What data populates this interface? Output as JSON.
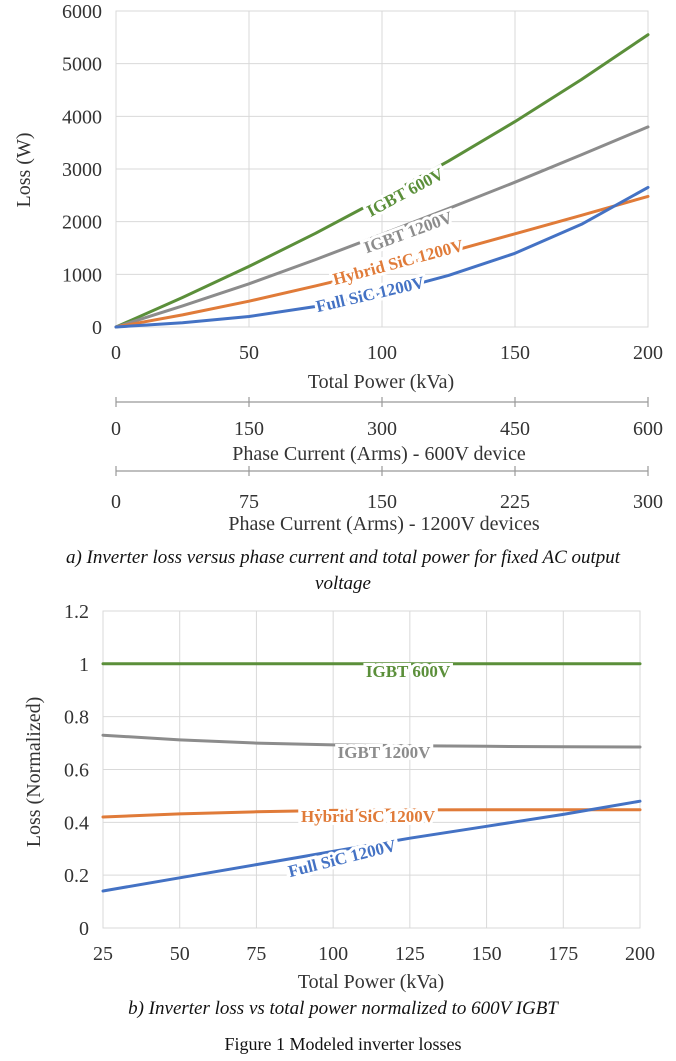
{
  "charts": [
    {
      "type": "line",
      "x_label": "Total Power (kVa)",
      "y_label": "Loss (W)",
      "x_ticks": [
        "0",
        "50",
        "100",
        "150",
        "200"
      ],
      "y_ticks": [
        "0",
        "1000",
        "2000",
        "3000",
        "4000",
        "5000",
        "6000"
      ],
      "xlim": [
        0,
        200
      ],
      "ylim": [
        0,
        6000
      ],
      "grid": true,
      "legend": "inline labels",
      "secondary_axes": [
        {
          "label": "Phase Current (Arms) - 600V device",
          "ticks": [
            "0",
            "150",
            "300",
            "450",
            "600"
          ]
        },
        {
          "label": "Phase Current (Arms) - 1200V devices",
          "ticks": [
            "0",
            "75",
            "150",
            "225",
            "300"
          ]
        }
      ],
      "caption_line1": "a) Inverter loss versus phase current and total power for fixed AC output",
      "caption_line2": "voltage",
      "series": [
        {
          "name": "IGBT 600V",
          "color": "#5b8f3a",
          "x": [
            0,
            25,
            50,
            75,
            100,
            125,
            150,
            175,
            200
          ],
          "y": [
            0,
            560,
            1150,
            1780,
            2450,
            3150,
            3900,
            4700,
            5550
          ]
        },
        {
          "name": "IGBT 1200V",
          "color": "#8c8c8c",
          "x": [
            0,
            25,
            50,
            75,
            100,
            125,
            150,
            175,
            200
          ],
          "y": [
            0,
            400,
            820,
            1280,
            1760,
            2250,
            2750,
            3270,
            3800
          ]
        },
        {
          "name": "Hybrid SiC 1200V",
          "color": "#e07b39",
          "x": [
            0,
            25,
            50,
            75,
            100,
            125,
            150,
            175,
            200
          ],
          "y": [
            0,
            230,
            490,
            780,
            1080,
            1420,
            1770,
            2120,
            2480
          ]
        },
        {
          "name": "Full SiC 1200V",
          "color": "#4472c4",
          "x": [
            0,
            25,
            50,
            75,
            100,
            125,
            150,
            175,
            200
          ],
          "y": [
            0,
            80,
            200,
            390,
            640,
            980,
            1400,
            1950,
            2650
          ]
        }
      ]
    },
    {
      "type": "line",
      "x_label": "Total Power (kVa)",
      "y_label": "Loss (Normalized)",
      "x_ticks": [
        "25",
        "50",
        "75",
        "100",
        "125",
        "150",
        "175",
        "200"
      ],
      "y_ticks": [
        "0",
        "0.2",
        "0.4",
        "0.6",
        "0.8",
        "1",
        "1.2"
      ],
      "xlim": [
        25,
        200
      ],
      "ylim": [
        0,
        1.2
      ],
      "grid": true,
      "legend": "inline labels",
      "caption_line1": "b) Inverter loss vs total power normalized to 600V IGBT",
      "series": [
        {
          "name": "IGBT 600V",
          "color": "#5b8f3a",
          "x": [
            25,
            50,
            75,
            100,
            125,
            150,
            175,
            200
          ],
          "y": [
            1,
            1,
            1,
            1,
            1,
            1,
            1,
            1
          ]
        },
        {
          "name": "IGBT 1200V",
          "color": "#8c8c8c",
          "x": [
            25,
            50,
            75,
            100,
            125,
            150,
            175,
            200
          ],
          "y": [
            0.73,
            0.712,
            0.7,
            0.693,
            0.69,
            0.688,
            0.686,
            0.685
          ]
        },
        {
          "name": "Hybrid SiC 1200V",
          "color": "#e07b39",
          "x": [
            25,
            50,
            75,
            100,
            125,
            150,
            175,
            200
          ],
          "y": [
            0.42,
            0.432,
            0.44,
            0.445,
            0.447,
            0.448,
            0.448,
            0.448
          ]
        },
        {
          "name": "Full SiC 1200V",
          "color": "#4472c4",
          "x": [
            25,
            50,
            75,
            100,
            125,
            150,
            175,
            200
          ],
          "y": [
            0.14,
            0.19,
            0.24,
            0.29,
            0.34,
            0.385,
            0.43,
            0.48
          ]
        }
      ]
    }
  ],
  "figure_caption": "Figure 1 Modeled inverter losses"
}
